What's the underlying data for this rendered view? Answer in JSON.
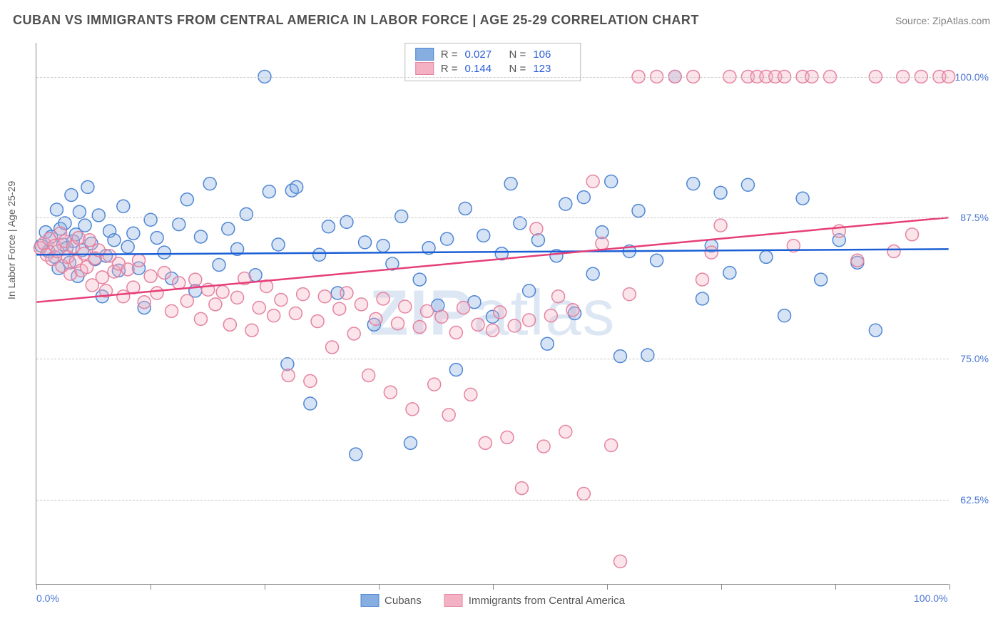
{
  "header": {
    "title": "CUBAN VS IMMIGRANTS FROM CENTRAL AMERICA IN LABOR FORCE | AGE 25-29 CORRELATION CHART",
    "source": "Source: ZipAtlas.com"
  },
  "ylabel": "In Labor Force | Age 25-29",
  "watermark": {
    "bold": "ZIP",
    "rest": "atlas"
  },
  "chart": {
    "type": "scatter",
    "background_color": "#ffffff",
    "grid_color": "#c8c8c8",
    "axis_color": "#888888",
    "xlim": [
      0,
      100
    ],
    "ylim": [
      55,
      103
    ],
    "x_ticks": [
      0,
      12.5,
      25,
      37.5,
      50,
      62.5,
      75,
      87.5,
      100
    ],
    "x_tick_labels": {
      "0": "0.0%",
      "100": "100.0%"
    },
    "y_gridlines": [
      62.5,
      75,
      87.5,
      100
    ],
    "y_tick_labels": {
      "62.5": "62.5%",
      "75": "75.0%",
      "87.5": "87.5%",
      "100": "100.0%"
    },
    "marker_radius": 9,
    "marker_fill_opacity": 0.35,
    "marker_stroke_width": 1.5,
    "trendline_width": 2.5,
    "series": [
      {
        "key": "cubans",
        "label": "Cubans",
        "fill": "#86aee1",
        "stroke": "#4f86d4",
        "trendline": {
          "y_at_x0": 84.2,
          "y_at_x100": 84.7,
          "color": "#1b5fd6"
        },
        "r": "0.027",
        "n": "106",
        "points": [
          [
            0.5,
            85
          ],
          [
            1,
            86.2
          ],
          [
            1.3,
            84.5
          ],
          [
            1.6,
            85.8
          ],
          [
            2,
            84
          ],
          [
            2.2,
            88.2
          ],
          [
            2.4,
            83
          ],
          [
            2.6,
            86.5
          ],
          [
            2.9,
            85.1
          ],
          [
            3.1,
            87
          ],
          [
            3.3,
            84.8
          ],
          [
            3.6,
            83.5
          ],
          [
            3.8,
            89.5
          ],
          [
            4.0,
            85.4
          ],
          [
            4.3,
            86
          ],
          [
            4.5,
            82.3
          ],
          [
            4.7,
            88
          ],
          [
            5,
            84.6
          ],
          [
            5.3,
            86.8
          ],
          [
            5.6,
            90.2
          ],
          [
            6,
            85.2
          ],
          [
            6.4,
            83.8
          ],
          [
            6.8,
            87.7
          ],
          [
            7.2,
            80.5
          ],
          [
            7.6,
            84.1
          ],
          [
            8,
            86.3
          ],
          [
            8.5,
            85.5
          ],
          [
            9,
            82.8
          ],
          [
            9.5,
            88.5
          ],
          [
            10,
            84.9
          ],
          [
            10.6,
            86.1
          ],
          [
            11.2,
            83
          ],
          [
            11.8,
            79.5
          ],
          [
            12.5,
            87.3
          ],
          [
            13.2,
            85.7
          ],
          [
            14,
            84.4
          ],
          [
            14.8,
            82.1
          ],
          [
            15.6,
            86.9
          ],
          [
            16.5,
            89.1
          ],
          [
            17.4,
            81
          ],
          [
            18,
            85.8
          ],
          [
            19,
            90.5
          ],
          [
            20,
            83.3
          ],
          [
            21,
            86.5
          ],
          [
            22,
            84.7
          ],
          [
            23,
            87.8
          ],
          [
            24,
            82.4
          ],
          [
            25,
            100
          ],
          [
            25.5,
            89.8
          ],
          [
            26.5,
            85.1
          ],
          [
            27.5,
            74.5
          ],
          [
            28,
            89.9
          ],
          [
            28.5,
            90.2
          ],
          [
            30,
            71
          ],
          [
            31,
            84.2
          ],
          [
            32,
            86.7
          ],
          [
            33,
            80.8
          ],
          [
            34,
            87.1
          ],
          [
            35,
            66.5
          ],
          [
            36,
            85.3
          ],
          [
            37,
            78
          ],
          [
            38,
            85
          ],
          [
            39,
            83.4
          ],
          [
            40,
            87.6
          ],
          [
            41,
            67.5
          ],
          [
            42,
            82
          ],
          [
            43,
            84.8
          ],
          [
            44,
            79.7
          ],
          [
            45,
            85.6
          ],
          [
            46,
            74
          ],
          [
            47,
            88.3
          ],
          [
            48,
            80
          ],
          [
            49,
            85.9
          ],
          [
            50,
            78.7
          ],
          [
            51,
            84.3
          ],
          [
            52,
            90.5
          ],
          [
            53,
            87
          ],
          [
            54,
            81
          ],
          [
            55,
            85.5
          ],
          [
            56,
            76.3
          ],
          [
            57,
            84.1
          ],
          [
            58,
            88.7
          ],
          [
            59,
            79
          ],
          [
            60,
            89.3
          ],
          [
            61,
            82.5
          ],
          [
            62,
            86.2
          ],
          [
            63,
            90.7
          ],
          [
            64,
            75.2
          ],
          [
            65,
            84.5
          ],
          [
            66,
            88.1
          ],
          [
            67,
            75.3
          ],
          [
            68,
            83.7
          ],
          [
            70,
            100
          ],
          [
            72,
            90.5
          ],
          [
            73,
            80.3
          ],
          [
            74,
            85
          ],
          [
            75,
            89.7
          ],
          [
            76,
            82.6
          ],
          [
            78,
            90.4
          ],
          [
            80,
            84
          ],
          [
            82,
            78.8
          ],
          [
            84,
            89.2
          ],
          [
            86,
            82
          ],
          [
            88,
            85.5
          ],
          [
            90,
            83.5
          ],
          [
            92,
            77.5
          ]
        ]
      },
      {
        "key": "central_america",
        "label": "Immigrants from Central America",
        "fill": "#f3b2c4",
        "stroke": "#e583a0",
        "trendline": {
          "y_at_x0": 80.0,
          "y_at_x100": 87.5,
          "color": "#e63e78"
        },
        "r": "0.144",
        "n": "123",
        "points": [
          [
            0.4,
            84.8
          ],
          [
            0.8,
            85.2
          ],
          [
            1.1,
            84.2
          ],
          [
            1.4,
            85.6
          ],
          [
            1.7,
            83.8
          ],
          [
            2,
            85
          ],
          [
            2.3,
            84.5
          ],
          [
            2.6,
            86.1
          ],
          [
            2.8,
            83.2
          ],
          [
            3.1,
            85.4
          ],
          [
            3.4,
            84
          ],
          [
            3.7,
            82.5
          ],
          [
            4,
            84.9
          ],
          [
            4.3,
            83.6
          ],
          [
            4.6,
            85.7
          ],
          [
            4.9,
            82.8
          ],
          [
            5.2,
            84.3
          ],
          [
            5.5,
            83.1
          ],
          [
            5.8,
            85.5
          ],
          [
            6.1,
            81.5
          ],
          [
            6.4,
            83.9
          ],
          [
            6.8,
            84.6
          ],
          [
            7.2,
            82.2
          ],
          [
            7.6,
            81
          ],
          [
            8,
            84.1
          ],
          [
            8.5,
            82.7
          ],
          [
            9,
            83.4
          ],
          [
            9.5,
            80.5
          ],
          [
            10,
            82.9
          ],
          [
            10.6,
            81.3
          ],
          [
            11.2,
            83.7
          ],
          [
            11.8,
            80
          ],
          [
            12.5,
            82.3
          ],
          [
            13.2,
            80.8
          ],
          [
            14,
            82.6
          ],
          [
            14.8,
            79.2
          ],
          [
            15.6,
            81.7
          ],
          [
            16.5,
            80.1
          ],
          [
            17.4,
            82
          ],
          [
            18,
            78.5
          ],
          [
            18.8,
            81.1
          ],
          [
            19.6,
            79.8
          ],
          [
            20.4,
            80.9
          ],
          [
            21.2,
            78
          ],
          [
            22,
            80.4
          ],
          [
            22.8,
            82.1
          ],
          [
            23.6,
            77.5
          ],
          [
            24.4,
            79.5
          ],
          [
            25.2,
            81.4
          ],
          [
            26,
            78.8
          ],
          [
            26.8,
            80.2
          ],
          [
            27.6,
            73.5
          ],
          [
            28.4,
            79
          ],
          [
            29.2,
            80.7
          ],
          [
            30,
            73
          ],
          [
            30.8,
            78.3
          ],
          [
            31.6,
            80.5
          ],
          [
            32.4,
            76
          ],
          [
            33.2,
            79.4
          ],
          [
            34,
            80.8
          ],
          [
            34.8,
            77.2
          ],
          [
            35.6,
            79.8
          ],
          [
            36.4,
            73.5
          ],
          [
            37.2,
            78.5
          ],
          [
            38,
            80.3
          ],
          [
            38.8,
            72
          ],
          [
            39.6,
            78.1
          ],
          [
            40.4,
            79.6
          ],
          [
            41.2,
            70.5
          ],
          [
            42,
            77.8
          ],
          [
            42.8,
            79.2
          ],
          [
            43.6,
            72.7
          ],
          [
            44.4,
            78.7
          ],
          [
            45.2,
            70
          ],
          [
            46,
            77.3
          ],
          [
            46.8,
            79.5
          ],
          [
            47.6,
            71.8
          ],
          [
            48.4,
            78
          ],
          [
            49.2,
            67.5
          ],
          [
            50,
            77.5
          ],
          [
            50.8,
            79.1
          ],
          [
            51.6,
            68
          ],
          [
            52.4,
            77.9
          ],
          [
            53.2,
            63.5
          ],
          [
            54,
            78.4
          ],
          [
            54.8,
            86.5
          ],
          [
            55.6,
            67.2
          ],
          [
            56.4,
            78.8
          ],
          [
            57.2,
            80.5
          ],
          [
            58,
            68.5
          ],
          [
            58.8,
            79.3
          ],
          [
            60,
            63
          ],
          [
            61,
            90.7
          ],
          [
            62,
            85.2
          ],
          [
            63,
            67.3
          ],
          [
            64,
            57
          ],
          [
            65,
            80.7
          ],
          [
            66,
            100
          ],
          [
            68,
            100
          ],
          [
            70,
            100
          ],
          [
            72,
            100
          ],
          [
            73,
            82
          ],
          [
            74,
            84.4
          ],
          [
            75,
            86.8
          ],
          [
            76,
            100
          ],
          [
            78,
            100
          ],
          [
            79,
            100
          ],
          [
            80,
            100
          ],
          [
            81,
            100
          ],
          [
            82,
            100
          ],
          [
            83,
            85
          ],
          [
            84,
            100
          ],
          [
            85,
            100
          ],
          [
            87,
            100
          ],
          [
            88,
            86.3
          ],
          [
            90,
            83.7
          ],
          [
            92,
            100
          ],
          [
            94,
            84.5
          ],
          [
            95,
            100
          ],
          [
            96,
            86
          ],
          [
            97,
            100
          ],
          [
            99,
            100
          ],
          [
            100,
            100
          ]
        ]
      }
    ]
  },
  "legend_top": {
    "r_label": "R =",
    "n_label": "N ="
  },
  "legend_bottom": [
    {
      "series": 0
    },
    {
      "series": 1
    }
  ]
}
